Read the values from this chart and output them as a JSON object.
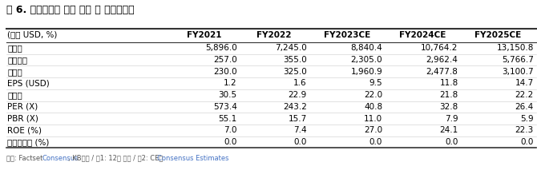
{
  "title": "표 6. 서비스나우 이익 예상 및 밸류에이션",
  "columns": [
    "(백만 USD, %)",
    "FY2021",
    "FY2022",
    "FY2023CE",
    "FY2024CE",
    "FY2025CE"
  ],
  "rows": [
    [
      "매출액",
      "5,896.0",
      "7,245.0",
      "8,840.4",
      "10,764.2",
      "13,150.8"
    ],
    [
      "영업이익",
      "257.0",
      "355.0",
      "2,305.0",
      "2,962.4",
      "5,766.7"
    ],
    [
      "순이익",
      "230.0",
      "325.0",
      "1,960.9",
      "2,477.8",
      "3,100.7"
    ],
    [
      "EPS (USD)",
      "1.2",
      "1.6",
      "9.5",
      "11.8",
      "14.7"
    ],
    [
      "증감률",
      "30.5",
      "22.9",
      "22.0",
      "21.8",
      "22.2"
    ],
    [
      "PER (X)",
      "573.4",
      "243.2",
      "40.8",
      "32.8",
      "26.4"
    ],
    [
      "PBR (X)",
      "55.1",
      "15.7",
      "11.0",
      "7.9",
      "5.9"
    ],
    [
      "ROE (%)",
      "7.0",
      "7.4",
      "27.0",
      "24.1",
      "22.3"
    ],
    [
      "배당수익률 (%)",
      "0.0",
      "0.0",
      "0.0",
      "0.0",
      "0.0"
    ]
  ],
  "footnote": "자료: Factset Consensus, KB증권 / 주1: 12월 결산 / 주2: CE는 Consensus Estimates",
  "footnote_colored_parts": [
    {
      "text": "Consensus",
      "color": "#4472C4"
    },
    {
      "text": "Consensus Estimates",
      "color": "#4472C4"
    }
  ],
  "bg_color": "#ffffff",
  "header_bg": "#f2f2f2",
  "line_color": "#999999",
  "text_color": "#000000",
  "font_size": 7.5,
  "title_font_size": 9.0
}
